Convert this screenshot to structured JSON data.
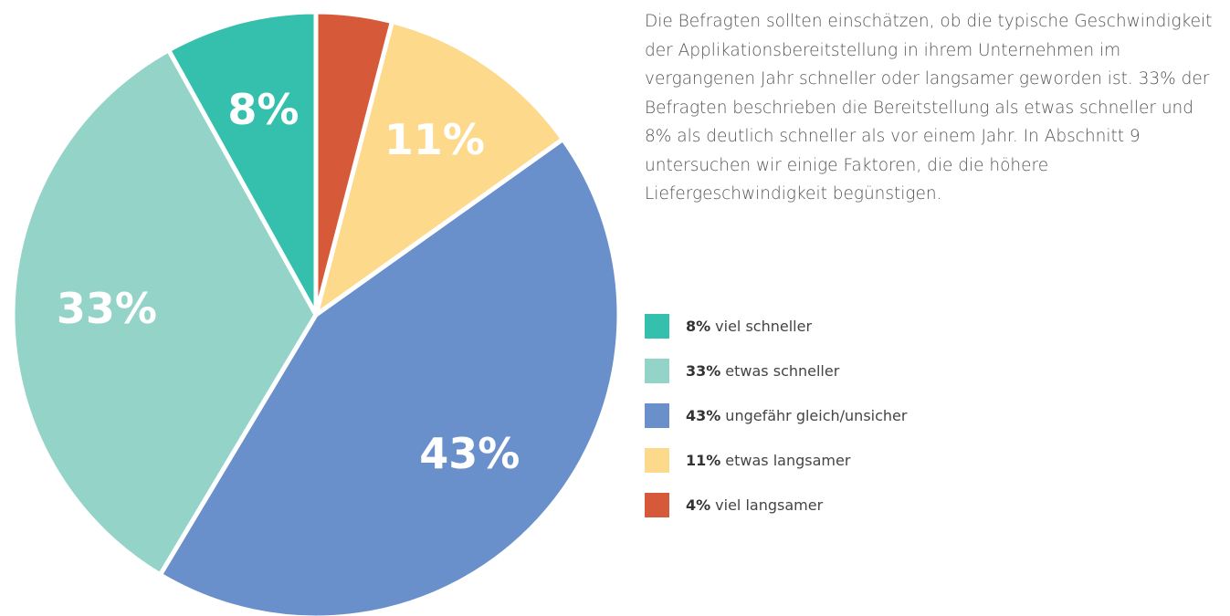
{
  "chart_data": {
    "type": "pie",
    "text": "Die Befragten sollten einschätzen, ob die typische Geschwindigkeit der Applikationsbereitstellung in ihrem Unternehmen im vergangenen Jahr schneller oder langsamer geworden ist. 33% der Befragten beschrieben die Bereitstellung als etwas schneller und 8% als deutlich schneller als vor einem Jahr. In Abschnitt 9 untersuchen wir einige Faktoren, die die höhere Liefergeschwindigkeit begünstigen.",
    "categories": [
      "viel schneller",
      "etwas schneller",
      "ungefähr gleich/unsicher",
      "etwas langsamer",
      "viel langsamer"
    ],
    "values": [
      8,
      33,
      43,
      11,
      4
    ],
    "value_labels": [
      "8%",
      "33%",
      "43%",
      "11%",
      "4%"
    ],
    "colors": [
      "#35bfad",
      "#93d3c8",
      "#6a90cb",
      "#fdd98c",
      "#d65a39"
    ]
  }
}
